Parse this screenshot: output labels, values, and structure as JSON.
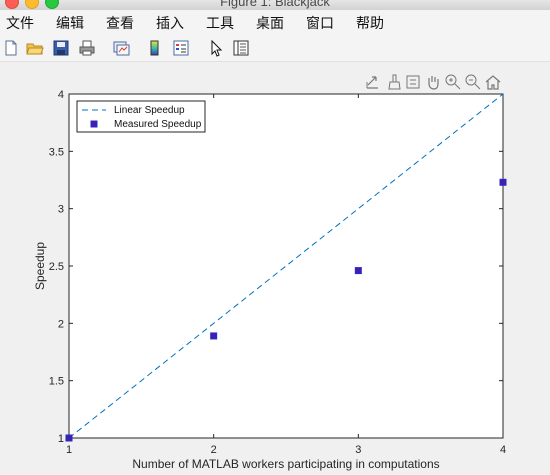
{
  "window": {
    "title": "Figure 1: Blackjack"
  },
  "menubar": {
    "items": [
      "文件",
      "编辑",
      "查看",
      "插入",
      "工具",
      "桌面",
      "窗口",
      "帮助"
    ]
  },
  "toolbar": {
    "buttons": [
      "new-figure-icon",
      "open-file-icon",
      "save-icon",
      "print-icon",
      "link-plot-icon",
      "insert-colorbar-icon",
      "insert-legend-icon",
      "edit-plot-icon",
      "property-inspector-icon"
    ]
  },
  "axes_toolbar": {
    "buttons": [
      "export-icon",
      "brush-icon",
      "data-tips-icon",
      "pan-icon",
      "zoom-in-icon",
      "zoom-out-icon",
      "home-icon"
    ]
  },
  "colors": {
    "linear": "#0072bd",
    "measured_fill": "#4b1aa8",
    "measured_edge": "#1d2fd6"
  },
  "chart_data": {
    "type": "scatter",
    "xlabel": "Number of MATLAB workers participating in computations",
    "ylabel": "Speedup",
    "xlim": [
      1,
      4
    ],
    "ylim": [
      1,
      4
    ],
    "xticks": [
      "1",
      "2",
      "3",
      "4"
    ],
    "yticks": [
      "1",
      "1.5",
      "2",
      "2.5",
      "3",
      "3.5",
      "4"
    ],
    "legend_position": "top-left",
    "series": [
      {
        "name": "Linear Speedup",
        "style": "dashed-line",
        "x": [
          1,
          4
        ],
        "y": [
          1,
          4
        ]
      },
      {
        "name": "Measured Speedup",
        "style": "square-marker",
        "x": [
          1,
          2,
          3,
          4
        ],
        "y": [
          1,
          1.89,
          2.46,
          3.23
        ]
      }
    ]
  }
}
